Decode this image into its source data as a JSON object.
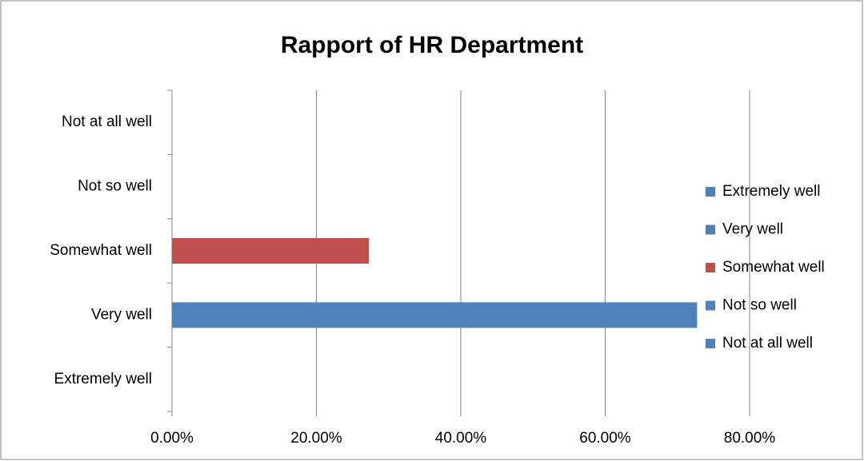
{
  "chart_data": {
    "type": "bar",
    "orientation": "horizontal",
    "title": "Rapport of HR Department",
    "categories": [
      "Extremely well",
      "Very well",
      "Somewhat well",
      "Not so well",
      "Not at all well"
    ],
    "values": [
      0,
      72.73,
      27.27,
      0,
      0
    ],
    "colors": [
      "#4f81bd",
      "#4f81bd",
      "#c0504d",
      "#4f81bd",
      "#4f81bd"
    ],
    "xlim": [
      0,
      80
    ],
    "xticks": [
      {
        "value": 0,
        "label": "0.00%"
      },
      {
        "value": 20,
        "label": "20.00%"
      },
      {
        "value": 40,
        "label": "40.00%"
      },
      {
        "value": 60,
        "label": "60.00%"
      },
      {
        "value": 80,
        "label": "80.00%"
      }
    ],
    "grid": true,
    "legend": "right"
  }
}
